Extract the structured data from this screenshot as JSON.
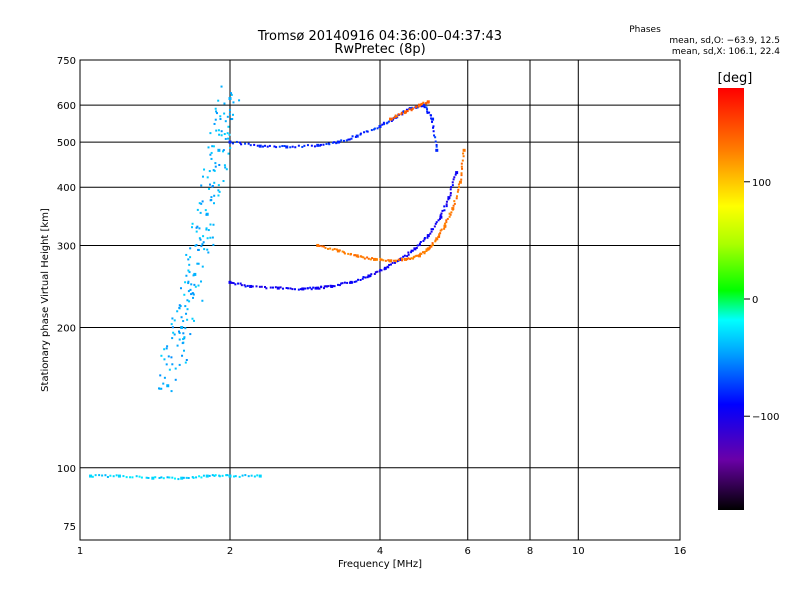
{
  "chart_data": {
    "type": "scatter",
    "title": "Tromsø 20140916 04:36:00–04:37:43",
    "subtitle": "RwPretec (8p)",
    "xlabel": "Frequency [MHz]",
    "ylabel": "Stationary phase Virtual Height [km]",
    "x_scale": "log",
    "y_scale": "log",
    "xlim": [
      1,
      16
    ],
    "ylim": [
      70,
      750
    ],
    "x_ticks": [
      1,
      2,
      4,
      6,
      8,
      10,
      16
    ],
    "y_ticks": [
      75,
      100,
      200,
      300,
      400,
      500,
      600,
      750
    ],
    "grid": true,
    "stats": {
      "heading": "Phases",
      "line_o": "mean, sd,O: −63.9, 12.5",
      "line_x": "mean, sd,X: 106.1, 22.4"
    },
    "colorbar": {
      "label": "[deg]",
      "range": [
        -180,
        180
      ],
      "ticks": [
        100,
        0,
        -100
      ]
    },
    "series": [
      {
        "group": "o-trace-low",
        "x": [
          2.0,
          2.2,
          2.5,
          2.8,
          3.0,
          3.2,
          3.5,
          3.8,
          4.1,
          4.4,
          4.7,
          5.0,
          5.3,
          5.5,
          5.7
        ],
        "y": [
          250,
          245,
          243,
          242,
          243,
          245,
          250,
          258,
          268,
          280,
          295,
          315,
          345,
          380,
          430
        ],
        "phase": -95
      },
      {
        "group": "x-trace-low",
        "x": [
          3.0,
          3.3,
          3.6,
          3.9,
          4.2,
          4.5,
          4.8,
          5.0,
          5.2,
          5.4,
          5.6,
          5.8,
          5.9
        ],
        "y": [
          300,
          292,
          285,
          280,
          278,
          280,
          285,
          295,
          310,
          330,
          360,
          410,
          480
        ],
        "phase": 130
      },
      {
        "group": "o-trace-high",
        "x": [
          2.0,
          2.3,
          2.6,
          3.0,
          3.3,
          3.6,
          4.0,
          4.3,
          4.6,
          4.9,
          5.1,
          5.2
        ],
        "y": [
          500,
          490,
          488,
          492,
          500,
          515,
          540,
          565,
          590,
          600,
          560,
          480
        ],
        "phase": -80
      },
      {
        "group": "x-trace-high",
        "x": [
          4.2,
          4.5,
          4.8,
          5.0
        ],
        "y": [
          560,
          580,
          600,
          610
        ],
        "phase": 140
      },
      {
        "group": "low-frequency-spread",
        "x": [
          1.5,
          1.6,
          1.7,
          1.8,
          1.9,
          2.0
        ],
        "y": [
          150,
          200,
          260,
          350,
          480,
          620
        ],
        "phase": -40
      },
      {
        "group": "ground-echo",
        "x": [
          1.05,
          1.2,
          1.4,
          1.6,
          1.8,
          2.0,
          2.3
        ],
        "y": [
          96,
          96,
          95,
          95,
          96,
          96,
          96
        ],
        "phase": -30
      }
    ]
  }
}
